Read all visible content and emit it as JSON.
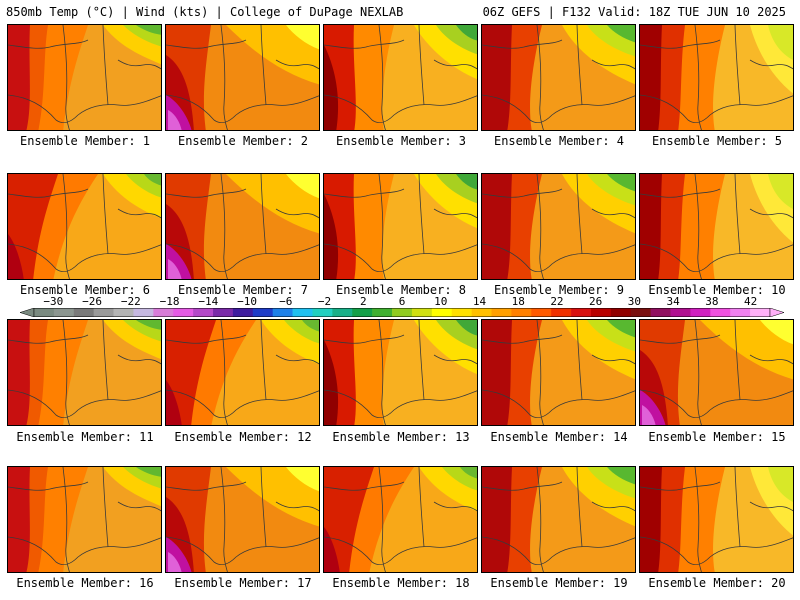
{
  "header": {
    "left_title": "850mb Temp (°C) | Wind (kts) | College of DuPage NEXLAB",
    "right_title": "06Z GEFS | F132 Valid: 18Z TUE JUN 10 2025"
  },
  "panels": [
    {
      "label": "Ensemble Member: 1",
      "variant": 0
    },
    {
      "label": "Ensemble Member: 2",
      "variant": 1
    },
    {
      "label": "Ensemble Member: 3",
      "variant": 2
    },
    {
      "label": "Ensemble Member: 4",
      "variant": 3
    },
    {
      "label": "Ensemble Member: 5",
      "variant": 4
    },
    {
      "label": "Ensemble Member: 6",
      "variant": 5
    },
    {
      "label": "Ensemble Member: 7",
      "variant": 1
    },
    {
      "label": "Ensemble Member: 8",
      "variant": 2
    },
    {
      "label": "Ensemble Member: 9",
      "variant": 3
    },
    {
      "label": "Ensemble Member: 10",
      "variant": 4
    },
    {
      "label": "Ensemble Member: 11",
      "variant": 0
    },
    {
      "label": "Ensemble Member: 12",
      "variant": 5
    },
    {
      "label": "Ensemble Member: 13",
      "variant": 2
    },
    {
      "label": "Ensemble Member: 14",
      "variant": 3
    },
    {
      "label": "Ensemble Member: 15",
      "variant": 1
    },
    {
      "label": "Ensemble Member: 16",
      "variant": 0
    },
    {
      "label": "Ensemble Member: 17",
      "variant": 1
    },
    {
      "label": "Ensemble Member: 18",
      "variant": 5
    },
    {
      "label": "Ensemble Member: 19",
      "variant": 3
    },
    {
      "label": "Ensemble Member: 20",
      "variant": 4
    }
  ],
  "colorbar": {
    "tick_labels": [
      "−30",
      "−26",
      "−22",
      "−18",
      "−14",
      "−10",
      "−6",
      "−2",
      "2",
      "6",
      "10",
      "14",
      "18",
      "22",
      "26",
      "30",
      "34",
      "38",
      "42"
    ],
    "colors": [
      "#7a8a80",
      "#8c9690",
      "#7a7a7a",
      "#9a9a9a",
      "#b4b4b4",
      "#c6b8e0",
      "#d87cd8",
      "#e45ae4",
      "#b448c8",
      "#7a2aa8",
      "#3e1c9e",
      "#1e3cc8",
      "#1e80e8",
      "#20c0f0",
      "#20d0c0",
      "#18b088",
      "#14a048",
      "#40b030",
      "#90cc20",
      "#d0e010",
      "#ffff00",
      "#ffe000",
      "#ffc000",
      "#ffa000",
      "#ff8000",
      "#ff5a00",
      "#f03000",
      "#d81010",
      "#b80000",
      "#900000",
      "#7a1010",
      "#901060",
      "#b01090",
      "#d020c0",
      "#f050e0",
      "#f080f0",
      "#ffb0f8"
    ],
    "min": -32,
    "max": 44,
    "step": 2
  }
}
